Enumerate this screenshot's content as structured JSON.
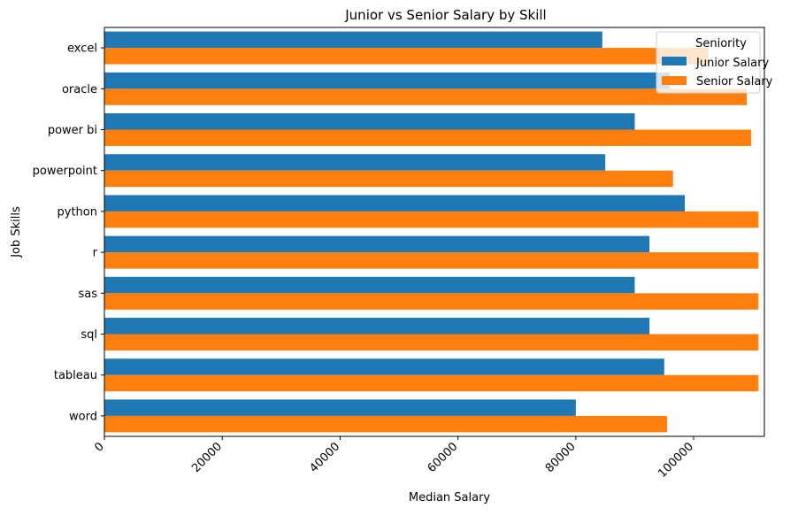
{
  "chart_data": {
    "type": "bar",
    "orientation": "horizontal",
    "title": "Junior vs Senior Salary by Skill",
    "xlabel": "Median Salary",
    "ylabel": "Job Skills",
    "xlim": [
      0,
      112000
    ],
    "xticks": [
      0,
      20000,
      40000,
      60000,
      80000,
      100000
    ],
    "xtick_labels": [
      "0",
      "20000",
      "40000",
      "60000",
      "80000",
      "100000"
    ],
    "grid": false,
    "categories": [
      "excel",
      "oracle",
      "power bi",
      "powerpoint",
      "python",
      "r",
      "sas",
      "sql",
      "tableau",
      "word"
    ],
    "series": [
      {
        "name": "Junior Salary",
        "color": "#1f77b4",
        "values": [
          84500,
          96000,
          90000,
          85000,
          98500,
          92500,
          90000,
          92500,
          95000,
          80000
        ]
      },
      {
        "name": "Senior Salary",
        "color": "#ff7f0e",
        "values": [
          102500,
          109000,
          109750,
          96500,
          111000,
          111000,
          111000,
          111000,
          111000,
          95500
        ]
      }
    ],
    "legend": {
      "title": "Seniority",
      "placement": "top-right",
      "entries": [
        "Junior Salary",
        "Senior Salary"
      ]
    }
  }
}
